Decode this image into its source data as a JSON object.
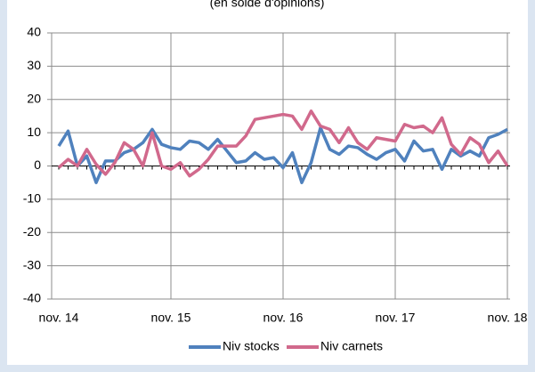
{
  "chart_data": {
    "type": "line",
    "subtitle": "(en solde d'opinions)",
    "categories": [
      "nov. 14",
      null,
      null,
      null,
      null,
      null,
      null,
      null,
      null,
      null,
      null,
      null,
      "nov. 15",
      null,
      null,
      null,
      null,
      null,
      null,
      null,
      null,
      null,
      null,
      null,
      "nov. 16",
      null,
      null,
      null,
      null,
      null,
      null,
      null,
      null,
      null,
      null,
      null,
      "nov. 17",
      null,
      null,
      null,
      null,
      null,
      null,
      null,
      null,
      null,
      null,
      null,
      "nov. 18"
    ],
    "series": [
      {
        "name": "Niv stocks",
        "color": "#4f81bd",
        "values": [
          6,
          10.5,
          0,
          3,
          -5,
          1.5,
          1.5,
          4,
          5,
          7,
          11,
          6.5,
          5.5,
          5,
          7.5,
          7,
          5,
          8,
          4.5,
          1,
          1.5,
          4,
          2,
          2.5,
          -0.5,
          4,
          -5,
          1,
          11.5,
          5,
          3.5,
          6,
          5.5,
          3.5,
          2,
          4,
          5,
          1.5,
          7.5,
          4.5,
          5,
          -1,
          5,
          3,
          4.5,
          3,
          8.5,
          9.5,
          11
        ]
      },
      {
        "name": "Niv carnets",
        "color": "#d1698c",
        "values": [
          -0.5,
          2,
          0,
          5,
          0.5,
          -2.5,
          1,
          7,
          5,
          0,
          10,
          0,
          -1,
          1,
          -3,
          -1,
          2,
          6,
          6,
          6,
          9,
          14,
          14.5,
          15,
          15.5,
          15,
          11,
          16.5,
          12,
          11,
          7,
          11.5,
          7,
          5,
          8.5,
          8,
          7.5,
          12.5,
          11.5,
          12,
          10,
          14.5,
          6.5,
          3.5,
          8.5,
          6.5,
          1,
          4.5,
          0
        ]
      }
    ],
    "ylim": [
      -40,
      40
    ],
    "yticks": [
      -40,
      -30,
      -20,
      -10,
      0,
      10,
      20,
      30,
      40
    ],
    "grid": true,
    "legend": "bottom"
  }
}
